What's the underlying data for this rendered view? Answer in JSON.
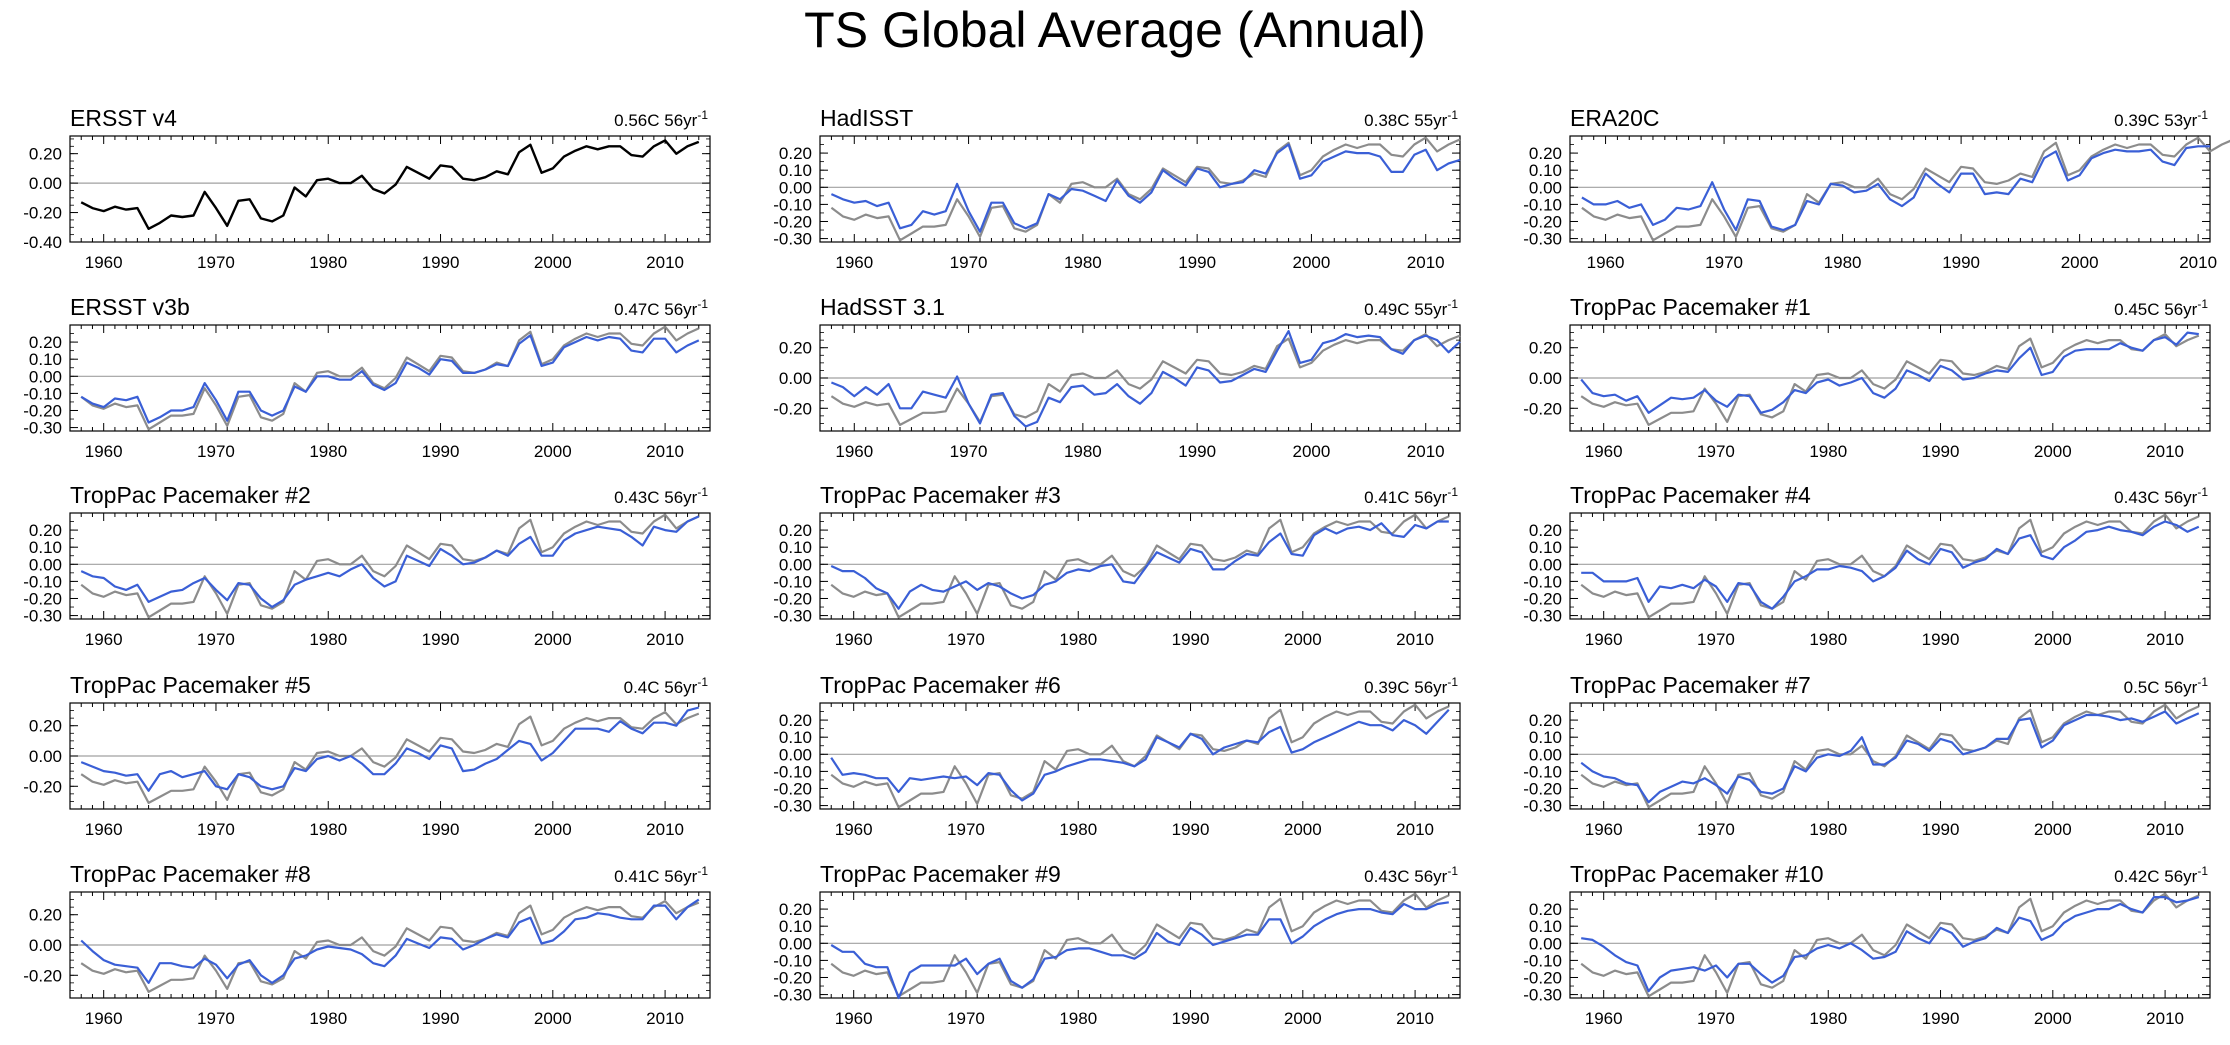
{
  "title": "TS Global Average (Annual)",
  "colors": {
    "observed": "#000000",
    "reference": "#8c8c8c",
    "model": "#3a5fd6",
    "zero_line": "#a0a0a0"
  },
  "chart_data": [
    {
      "type": "line",
      "name": "ERSST v4",
      "trend_label": "0.56C 56yr",
      "trend_exp": "-1",
      "ylim": [
        -0.4,
        0.32
      ],
      "yticks": [
        0.2,
        0.0,
        -0.2,
        -0.4
      ],
      "ytick_labels": [
        "0.20",
        "0.00",
        "-0.20",
        "-0.40"
      ],
      "xlim": [
        1957,
        2014
      ],
      "xticks": [
        1960,
        1970,
        1980,
        1990,
        2000,
        2010
      ],
      "series_key": "ersst"
    },
    {
      "type": "line",
      "name": "HadISST",
      "trend_label": "0.38C 55yr",
      "trend_exp": "-1",
      "ylim": [
        -0.32,
        0.3
      ],
      "yticks": [
        0.2,
        0.15,
        0.1,
        0.05,
        0.0,
        -0.05,
        -0.1,
        -0.15,
        -0.2,
        -0.25,
        -0.3
      ],
      "ytick_labels": [
        "0.20",
        "0.10",
        "0.00",
        "-0.10",
        "-0.20",
        "-0.30"
      ],
      "xlim": [
        1957,
        2013
      ],
      "xticks": [
        1960,
        1970,
        1980,
        1990,
        2000,
        2010
      ],
      "series_key": "m1"
    },
    {
      "type": "line",
      "name": "ERA20C",
      "trend_label": "0.39C 53yr",
      "trend_exp": "-1",
      "ylim": [
        -0.32,
        0.3
      ],
      "ytick_labels": [
        "0.20",
        "0.10",
        "0.00",
        "-0.10",
        "-0.20",
        "-0.30"
      ],
      "xlim": [
        1957,
        2011
      ],
      "xticks": [
        1960,
        1970,
        1980,
        1990,
        2000,
        2010
      ],
      "series_key": "m2"
    },
    {
      "type": "line",
      "name": "ERSST v3b",
      "trend_label": "0.47C 56yr",
      "trend_exp": "-1",
      "ylim": [
        -0.32,
        0.3
      ],
      "ytick_labels": [
        "0.20",
        "0.10",
        "0.00",
        "-0.10",
        "-0.20",
        "-0.30"
      ],
      "xlim": [
        1957,
        2014
      ],
      "xticks": [
        1960,
        1970,
        1980,
        1990,
        2000,
        2010
      ],
      "series_key": "m3"
    },
    {
      "type": "line",
      "name": "HadSST 3.1",
      "trend_label": "0.49C 55yr",
      "trend_exp": "-1",
      "ylim": [
        -0.35,
        0.35
      ],
      "ytick_labels": [
        "0.20",
        "0.00",
        "-0.20"
      ],
      "xlim": [
        1957,
        2013
      ],
      "xticks": [
        1960,
        1970,
        1980,
        1990,
        2000,
        2010
      ],
      "series_key": "m4"
    },
    {
      "type": "line",
      "name": "TropPac Pacemaker #1",
      "trend_label": "0.45C 56yr",
      "trend_exp": "-1",
      "ylim": [
        -0.35,
        0.35
      ],
      "ytick_labels": [
        "0.20",
        "0.00",
        "-0.20"
      ],
      "xlim": [
        1957,
        2014
      ],
      "xticks": [
        1960,
        1970,
        1980,
        1990,
        2000,
        2010
      ],
      "series_key": "m5"
    },
    {
      "type": "line",
      "name": "TropPac Pacemaker #2",
      "trend_label": "0.43C 56yr",
      "trend_exp": "-1",
      "ylim": [
        -0.32,
        0.3
      ],
      "ytick_labels": [
        "0.20",
        "0.10",
        "0.00",
        "-0.10",
        "-0.20",
        "-0.30"
      ],
      "xlim": [
        1957,
        2014
      ],
      "xticks": [
        1960,
        1970,
        1980,
        1990,
        2000,
        2010
      ],
      "series_key": "m6"
    },
    {
      "type": "line",
      "name": "TropPac Pacemaker #3",
      "trend_label": "0.41C 56yr",
      "trend_exp": "-1",
      "ylim": [
        -0.32,
        0.3
      ],
      "ytick_labels": [
        "0.20",
        "0.10",
        "0.00",
        "-0.10",
        "-0.20",
        "-0.30"
      ],
      "xlim": [
        1957,
        2014
      ],
      "xticks": [
        1960,
        1970,
        1980,
        1990,
        2000,
        2010
      ],
      "series_key": "m7"
    },
    {
      "type": "line",
      "name": "TropPac Pacemaker #4",
      "trend_label": "0.43C 56yr",
      "trend_exp": "-1",
      "ylim": [
        -0.32,
        0.3
      ],
      "ytick_labels": [
        "0.20",
        "0.10",
        "0.00",
        "-0.10",
        "-0.20",
        "-0.30"
      ],
      "xlim": [
        1957,
        2014
      ],
      "xticks": [
        1960,
        1970,
        1980,
        1990,
        2000,
        2010
      ],
      "series_key": "m8"
    },
    {
      "type": "line",
      "name": "TropPac Pacemaker #5",
      "trend_label": "0.4C 56yr",
      "trend_exp": "-1",
      "ylim": [
        -0.35,
        0.35
      ],
      "ytick_labels": [
        "0.20",
        "0.00",
        "-0.20"
      ],
      "xlim": [
        1957,
        2014
      ],
      "xticks": [
        1960,
        1970,
        1980,
        1990,
        2000,
        2010
      ],
      "series_key": "m9"
    },
    {
      "type": "line",
      "name": "TropPac Pacemaker #6",
      "trend_label": "0.39C 56yr",
      "trend_exp": "-1",
      "ylim": [
        -0.32,
        0.3
      ],
      "ytick_labels": [
        "0.20",
        "0.10",
        "0.00",
        "-0.10",
        "-0.20",
        "-0.30"
      ],
      "xlim": [
        1957,
        2014
      ],
      "xticks": [
        1960,
        1970,
        1980,
        1990,
        2000,
        2010
      ],
      "series_key": "m10"
    },
    {
      "type": "line",
      "name": "TropPac Pacemaker #7",
      "trend_label": "0.5C 56yr",
      "trend_exp": "-1",
      "ylim": [
        -0.32,
        0.3
      ],
      "ytick_labels": [
        "0.20",
        "0.10",
        "0.00",
        "-0.10",
        "-0.20",
        "-0.30"
      ],
      "xlim": [
        1957,
        2014
      ],
      "xticks": [
        1960,
        1970,
        1980,
        1990,
        2000,
        2010
      ],
      "series_key": "m11"
    },
    {
      "type": "line",
      "name": "TropPac Pacemaker #8",
      "trend_label": "0.41C 56yr",
      "trend_exp": "-1",
      "ylim": [
        -0.35,
        0.35
      ],
      "ytick_labels": [
        "0.20",
        "0.00",
        "-0.20"
      ],
      "xlim": [
        1957,
        2014
      ],
      "xticks": [
        1960,
        1970,
        1980,
        1990,
        2000,
        2010
      ],
      "series_key": "m12"
    },
    {
      "type": "line",
      "name": "TropPac Pacemaker #9",
      "trend_label": "0.43C 56yr",
      "trend_exp": "-1",
      "ylim": [
        -0.32,
        0.3
      ],
      "ytick_labels": [
        "0.20",
        "0.10",
        "0.00",
        "-0.10",
        "-0.20",
        "-0.30"
      ],
      "xlim": [
        1957,
        2014
      ],
      "xticks": [
        1960,
        1970,
        1980,
        1990,
        2000,
        2010
      ],
      "series_key": "m13"
    },
    {
      "type": "line",
      "name": "TropPac Pacemaker #10",
      "trend_label": "0.42C 56yr",
      "trend_exp": "-1",
      "ylim": [
        -0.32,
        0.3
      ],
      "ytick_labels": [
        "0.20",
        "0.10",
        "0.00",
        "-0.10",
        "-0.20",
        "-0.30"
      ],
      "xlim": [
        1957,
        2014
      ],
      "xticks": [
        1960,
        1970,
        1980,
        1990,
        2000,
        2010
      ],
      "series_key": "m14"
    }
  ],
  "series": {
    "years": [
      1958,
      1959,
      1960,
      1961,
      1962,
      1963,
      1964,
      1965,
      1966,
      1967,
      1968,
      1969,
      1970,
      1971,
      1972,
      1973,
      1974,
      1975,
      1976,
      1977,
      1978,
      1979,
      1980,
      1981,
      1982,
      1983,
      1984,
      1985,
      1986,
      1987,
      1988,
      1989,
      1990,
      1991,
      1992,
      1993,
      1994,
      1995,
      1996,
      1997,
      1998,
      1999,
      2000,
      2001,
      2002,
      2003,
      2004,
      2005,
      2006,
      2007,
      2008,
      2009,
      2010,
      2011,
      2012,
      2013
    ],
    "ersst": [
      -0.13,
      -0.17,
      -0.19,
      -0.16,
      -0.18,
      -0.17,
      -0.31,
      -0.27,
      -0.22,
      -0.23,
      -0.22,
      -0.06,
      -0.17,
      -0.29,
      -0.12,
      -0.11,
      -0.24,
      -0.26,
      -0.22,
      -0.03,
      -0.09,
      0.02,
      0.03,
      0.0,
      0.0,
      0.05,
      -0.04,
      -0.07,
      -0.01,
      0.11,
      0.07,
      0.03,
      0.12,
      0.11,
      0.03,
      0.02,
      0.04,
      0.08,
      0.06,
      0.21,
      0.26,
      0.07,
      0.1,
      0.18,
      0.22,
      0.25,
      0.23,
      0.25,
      0.25,
      0.19,
      0.18,
      0.25,
      0.29,
      0.2,
      0.25,
      0.28
    ],
    "reference": [
      -0.12,
      -0.17,
      -0.19,
      -0.16,
      -0.18,
      -0.17,
      -0.31,
      -0.27,
      -0.23,
      -0.23,
      -0.22,
      -0.07,
      -0.17,
      -0.29,
      -0.12,
      -0.11,
      -0.24,
      -0.26,
      -0.22,
      -0.04,
      -0.09,
      0.02,
      0.03,
      0.0,
      0.0,
      0.05,
      -0.04,
      -0.07,
      -0.01,
      0.11,
      0.07,
      0.03,
      0.12,
      0.11,
      0.03,
      0.02,
      0.04,
      0.08,
      0.06,
      0.21,
      0.26,
      0.07,
      0.1,
      0.18,
      0.22,
      0.25,
      0.23,
      0.25,
      0.25,
      0.19,
      0.18,
      0.25,
      0.29,
      0.21,
      0.25,
      0.28
    ],
    "m1": [
      -0.04,
      -0.07,
      -0.09,
      -0.08,
      -0.11,
      -0.09,
      -0.24,
      -0.22,
      -0.14,
      -0.16,
      -0.14,
      0.02,
      -0.14,
      -0.26,
      -0.09,
      -0.09,
      -0.21,
      -0.24,
      -0.21,
      -0.04,
      -0.07,
      -0.01,
      -0.02,
      -0.05,
      -0.08,
      0.04,
      -0.05,
      -0.09,
      -0.03,
      0.1,
      0.05,
      0.01,
      0.11,
      0.09,
      0.0,
      0.02,
      0.03,
      0.1,
      0.08,
      0.2,
      0.25,
      0.05,
      0.07,
      0.15,
      0.18,
      0.21,
      0.2,
      0.2,
      0.18,
      0.09,
      0.09,
      0.19,
      0.22,
      0.1,
      0.14,
      0.16
    ],
    "m2": [
      -0.06,
      -0.1,
      -0.1,
      -0.08,
      -0.12,
      -0.1,
      -0.22,
      -0.19,
      -0.12,
      -0.13,
      -0.11,
      0.03,
      -0.13,
      -0.25,
      -0.07,
      -0.08,
      -0.23,
      -0.25,
      -0.22,
      -0.08,
      -0.1,
      0.02,
      0.01,
      -0.03,
      -0.02,
      0.02,
      -0.07,
      -0.11,
      -0.06,
      0.08,
      0.02,
      -0.03,
      0.08,
      0.08,
      -0.04,
      -0.03,
      -0.04,
      0.05,
      0.03,
      0.17,
      0.21,
      0.04,
      0.07,
      0.17,
      0.2,
      0.22,
      0.21,
      0.21,
      0.22,
      0.15,
      0.13,
      0.23,
      0.24,
      0.24
    ],
    "m3": [
      -0.12,
      -0.16,
      -0.18,
      -0.13,
      -0.14,
      -0.12,
      -0.27,
      -0.24,
      -0.2,
      -0.2,
      -0.18,
      -0.04,
      -0.14,
      -0.26,
      -0.09,
      -0.09,
      -0.2,
      -0.23,
      -0.2,
      -0.06,
      -0.09,
      0.0,
      0.0,
      -0.02,
      -0.02,
      0.03,
      -0.05,
      -0.08,
      -0.04,
      0.08,
      0.05,
      0.01,
      0.1,
      0.09,
      0.02,
      0.02,
      0.04,
      0.07,
      0.06,
      0.19,
      0.24,
      0.06,
      0.08,
      0.17,
      0.2,
      0.23,
      0.21,
      0.23,
      0.22,
      0.15,
      0.14,
      0.22,
      0.22,
      0.14,
      0.18,
      0.21
    ],
    "m4": [
      -0.03,
      -0.06,
      -0.12,
      -0.06,
      -0.11,
      -0.04,
      -0.2,
      -0.2,
      -0.09,
      -0.11,
      -0.13,
      0.01,
      -0.17,
      -0.3,
      -0.11,
      -0.1,
      -0.25,
      -0.32,
      -0.29,
      -0.13,
      -0.16,
      -0.06,
      -0.05,
      -0.11,
      -0.1,
      -0.04,
      -0.12,
      -0.17,
      -0.1,
      0.04,
      0.0,
      -0.05,
      0.07,
      0.05,
      -0.03,
      -0.02,
      0.02,
      0.06,
      0.04,
      0.18,
      0.31,
      0.1,
      0.12,
      0.23,
      0.25,
      0.29,
      0.27,
      0.28,
      0.27,
      0.19,
      0.16,
      0.25,
      0.28,
      0.25,
      0.17,
      0.24
    ],
    "m5": [
      -0.01,
      -0.1,
      -0.12,
      -0.11,
      -0.15,
      -0.12,
      -0.23,
      -0.18,
      -0.13,
      -0.14,
      -0.13,
      -0.08,
      -0.15,
      -0.19,
      -0.11,
      -0.12,
      -0.23,
      -0.21,
      -0.16,
      -0.08,
      -0.1,
      -0.03,
      -0.01,
      -0.05,
      -0.03,
      0.0,
      -0.1,
      -0.13,
      -0.07,
      0.05,
      0.02,
      -0.02,
      0.08,
      0.05,
      -0.01,
      0.0,
      0.03,
      0.05,
      0.04,
      0.13,
      0.2,
      0.02,
      0.04,
      0.14,
      0.18,
      0.19,
      0.19,
      0.19,
      0.23,
      0.2,
      0.18,
      0.25,
      0.27,
      0.22,
      0.3,
      0.29
    ],
    "m6": [
      -0.04,
      -0.07,
      -0.08,
      -0.13,
      -0.15,
      -0.12,
      -0.22,
      -0.19,
      -0.16,
      -0.15,
      -0.11,
      -0.08,
      -0.15,
      -0.21,
      -0.11,
      -0.12,
      -0.2,
      -0.25,
      -0.21,
      -0.12,
      -0.09,
      -0.07,
      -0.05,
      -0.07,
      -0.03,
      0.0,
      -0.08,
      -0.13,
      -0.1,
      0.05,
      0.02,
      -0.01,
      0.09,
      0.05,
      0.0,
      0.01,
      0.04,
      0.08,
      0.05,
      0.12,
      0.16,
      0.05,
      0.05,
      0.14,
      0.18,
      0.2,
      0.22,
      0.21,
      0.2,
      0.16,
      0.11,
      0.22,
      0.2,
      0.19,
      0.25,
      0.28
    ],
    "m7": [
      -0.01,
      -0.04,
      -0.04,
      -0.08,
      -0.14,
      -0.17,
      -0.26,
      -0.16,
      -0.12,
      -0.15,
      -0.16,
      -0.13,
      -0.1,
      -0.15,
      -0.11,
      -0.13,
      -0.17,
      -0.2,
      -0.18,
      -0.12,
      -0.1,
      -0.05,
      -0.03,
      -0.04,
      -0.01,
      0.0,
      -0.1,
      -0.11,
      -0.02,
      0.07,
      0.04,
      0.01,
      0.09,
      0.07,
      -0.03,
      -0.03,
      0.02,
      0.06,
      0.05,
      0.13,
      0.18,
      0.06,
      0.05,
      0.17,
      0.21,
      0.18,
      0.21,
      0.22,
      0.2,
      0.24,
      0.17,
      0.16,
      0.23,
      0.21,
      0.25,
      0.25
    ],
    "m8": [
      -0.05,
      -0.05,
      -0.1,
      -0.1,
      -0.1,
      -0.08,
      -0.22,
      -0.13,
      -0.14,
      -0.12,
      -0.14,
      -0.09,
      -0.13,
      -0.22,
      -0.11,
      -0.12,
      -0.22,
      -0.26,
      -0.19,
      -0.1,
      -0.07,
      -0.03,
      -0.03,
      -0.01,
      -0.02,
      -0.04,
      -0.1,
      -0.07,
      -0.02,
      0.08,
      0.03,
      0.0,
      0.09,
      0.07,
      -0.02,
      0.01,
      0.03,
      0.09,
      0.06,
      0.15,
      0.17,
      0.05,
      0.03,
      0.1,
      0.14,
      0.19,
      0.2,
      0.22,
      0.2,
      0.19,
      0.17,
      0.22,
      0.25,
      0.23,
      0.19,
      0.22
    ],
    "m9": [
      -0.04,
      -0.07,
      -0.1,
      -0.11,
      -0.13,
      -0.12,
      -0.23,
      -0.12,
      -0.1,
      -0.14,
      -0.12,
      -0.1,
      -0.2,
      -0.22,
      -0.12,
      -0.14,
      -0.2,
      -0.22,
      -0.2,
      -0.08,
      -0.1,
      -0.02,
      0.0,
      -0.03,
      0.0,
      -0.05,
      -0.12,
      -0.12,
      -0.05,
      0.05,
      0.02,
      -0.02,
      0.07,
      0.05,
      -0.1,
      -0.09,
      -0.05,
      -0.02,
      0.04,
      0.1,
      0.08,
      -0.03,
      0.02,
      0.1,
      0.18,
      0.18,
      0.18,
      0.16,
      0.23,
      0.18,
      0.15,
      0.22,
      0.22,
      0.2,
      0.3,
      0.32
    ],
    "m10": [
      -0.02,
      -0.12,
      -0.11,
      -0.12,
      -0.14,
      -0.14,
      -0.22,
      -0.14,
      -0.15,
      -0.14,
      -0.13,
      -0.14,
      -0.13,
      -0.18,
      -0.11,
      -0.12,
      -0.21,
      -0.27,
      -0.23,
      -0.12,
      -0.1,
      -0.07,
      -0.05,
      -0.03,
      -0.03,
      -0.04,
      -0.05,
      -0.07,
      -0.03,
      0.1,
      0.07,
      0.04,
      0.12,
      0.09,
      0.0,
      0.04,
      0.06,
      0.08,
      0.07,
      0.13,
      0.16,
      0.01,
      0.03,
      0.07,
      0.1,
      0.13,
      0.16,
      0.19,
      0.17,
      0.17,
      0.14,
      0.2,
      0.17,
      0.12,
      0.19,
      0.26
    ],
    "m11": [
      -0.05,
      -0.1,
      -0.13,
      -0.14,
      -0.17,
      -0.18,
      -0.28,
      -0.22,
      -0.19,
      -0.16,
      -0.17,
      -0.14,
      -0.18,
      -0.23,
      -0.13,
      -0.15,
      -0.22,
      -0.23,
      -0.2,
      -0.07,
      -0.1,
      -0.02,
      0.0,
      -0.01,
      0.02,
      0.1,
      -0.06,
      -0.06,
      -0.02,
      0.08,
      0.06,
      0.02,
      0.09,
      0.07,
      0.0,
      0.02,
      0.04,
      0.09,
      0.09,
      0.2,
      0.21,
      0.04,
      0.08,
      0.17,
      0.2,
      0.23,
      0.23,
      0.22,
      0.2,
      0.21,
      0.19,
      0.22,
      0.25,
      0.18,
      0.21,
      0.24
    ],
    "m12": [
      0.03,
      -0.04,
      -0.1,
      -0.13,
      -0.14,
      -0.15,
      -0.25,
      -0.12,
      -0.12,
      -0.14,
      -0.15,
      -0.09,
      -0.13,
      -0.22,
      -0.13,
      -0.1,
      -0.2,
      -0.25,
      -0.2,
      -0.09,
      -0.07,
      -0.03,
      -0.01,
      -0.02,
      -0.03,
      -0.06,
      -0.12,
      -0.14,
      -0.07,
      0.04,
      0.01,
      -0.02,
      0.05,
      0.04,
      -0.03,
      0.0,
      0.04,
      0.07,
      0.05,
      0.15,
      0.18,
      0.01,
      0.03,
      0.09,
      0.17,
      0.18,
      0.21,
      0.2,
      0.18,
      0.17,
      0.17,
      0.26,
      0.26,
      0.17,
      0.25,
      0.3
    ],
    "m13": [
      -0.01,
      -0.05,
      -0.05,
      -0.12,
      -0.14,
      -0.14,
      -0.32,
      -0.17,
      -0.13,
      -0.13,
      -0.13,
      -0.13,
      -0.09,
      -0.18,
      -0.12,
      -0.09,
      -0.22,
      -0.26,
      -0.21,
      -0.09,
      -0.08,
      -0.04,
      -0.03,
      -0.03,
      -0.05,
      -0.07,
      -0.07,
      -0.09,
      -0.05,
      0.06,
      0.01,
      -0.01,
      0.09,
      0.05,
      -0.01,
      0.01,
      0.03,
      0.05,
      0.05,
      0.14,
      0.14,
      0.0,
      0.04,
      0.1,
      0.14,
      0.17,
      0.19,
      0.2,
      0.2,
      0.18,
      0.17,
      0.23,
      0.2,
      0.2,
      0.23,
      0.24
    ],
    "m14": [
      0.03,
      0.02,
      -0.02,
      -0.07,
      -0.11,
      -0.13,
      -0.28,
      -0.2,
      -0.16,
      -0.15,
      -0.14,
      -0.16,
      -0.13,
      -0.2,
      -0.12,
      -0.12,
      -0.18,
      -0.23,
      -0.19,
      -0.08,
      -0.07,
      -0.03,
      -0.01,
      -0.03,
      0.0,
      -0.04,
      -0.09,
      -0.08,
      -0.05,
      0.07,
      0.03,
      0.0,
      0.09,
      0.06,
      -0.02,
      0.01,
      0.03,
      0.09,
      0.06,
      0.15,
      0.13,
      0.02,
      0.05,
      0.12,
      0.16,
      0.18,
      0.2,
      0.2,
      0.23,
      0.2,
      0.18,
      0.27,
      0.27,
      0.24,
      0.25,
      0.27
    ]
  }
}
